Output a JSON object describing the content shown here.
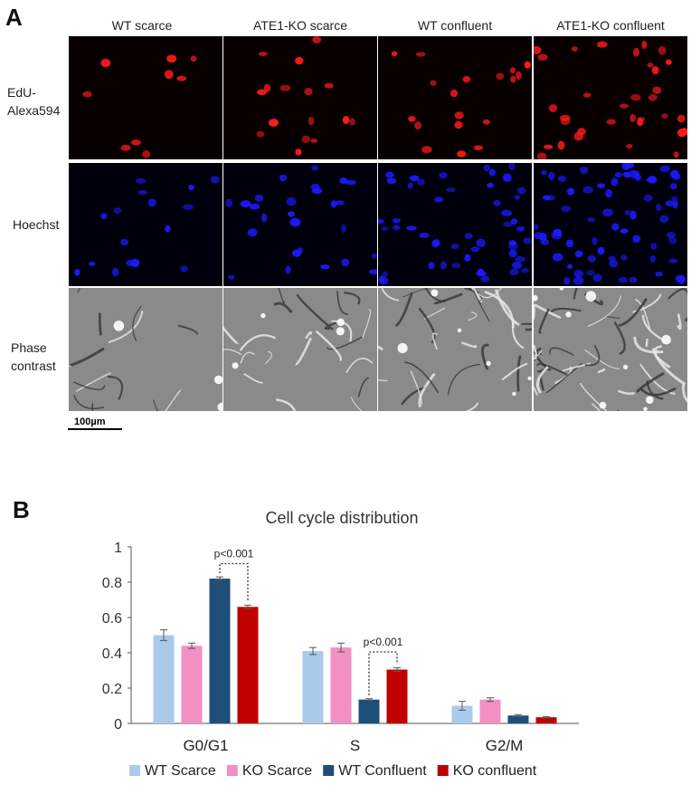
{
  "panel_a": {
    "letter": "A",
    "columns": [
      "WT scarce",
      "ATE1-KO scarce",
      "WT confluent",
      "ATE1-KO confluent"
    ],
    "rows": [
      {
        "label_lines": [
          "EdU-",
          "Alexa594"
        ],
        "color": "#ff1a1a",
        "background": "#080000"
      },
      {
        "label_lines": [
          "Hoechst"
        ],
        "color": "#1a1aff",
        "background": "#00000d"
      },
      {
        "label_lines": [
          "Phase",
          "contrast"
        ],
        "color": "#e8e8e8",
        "background": "#8a8a8a"
      }
    ],
    "scale_bar": "100µm"
  },
  "panel_b": {
    "letter": "B"
  },
  "chart_data": {
    "type": "bar",
    "title": "Cell cycle distribution",
    "categories": [
      "G0/G1",
      "S",
      "G2/M"
    ],
    "ylim": [
      0,
      1
    ],
    "yticks": [
      "0",
      "0.2",
      "0.4",
      "0.6",
      "0.8",
      "1"
    ],
    "xlabel": "",
    "ylabel": "",
    "grid": false,
    "legend_position": "bottom",
    "series": [
      {
        "name": "WT Scarce",
        "color": "#a9cbe9",
        "values": [
          0.5,
          0.41,
          0.1
        ],
        "errors": [
          0.03,
          0.02,
          0.025
        ]
      },
      {
        "name": "KO Scarce",
        "color": "#f28fc3",
        "values": [
          0.44,
          0.43,
          0.135
        ],
        "errors": [
          0.015,
          0.025,
          0.01
        ]
      },
      {
        "name": "WT Confluent",
        "color": "#1f4e79",
        "values": [
          0.82,
          0.135,
          0.045
        ],
        "errors": [
          0.01,
          0.005,
          0.005
        ]
      },
      {
        "name": "KO confluent",
        "color": "#c00000",
        "values": [
          0.66,
          0.305,
          0.035
        ],
        "errors": [
          0.01,
          0.01,
          0.003
        ]
      }
    ],
    "annotations": [
      {
        "text": "p<0.001",
        "category": 0,
        "from_series": 2,
        "to_series": 3,
        "y": 0.905
      },
      {
        "text": "p<0.001",
        "category": 1,
        "from_series": 2,
        "to_series": 3,
        "y": 0.405
      }
    ]
  }
}
